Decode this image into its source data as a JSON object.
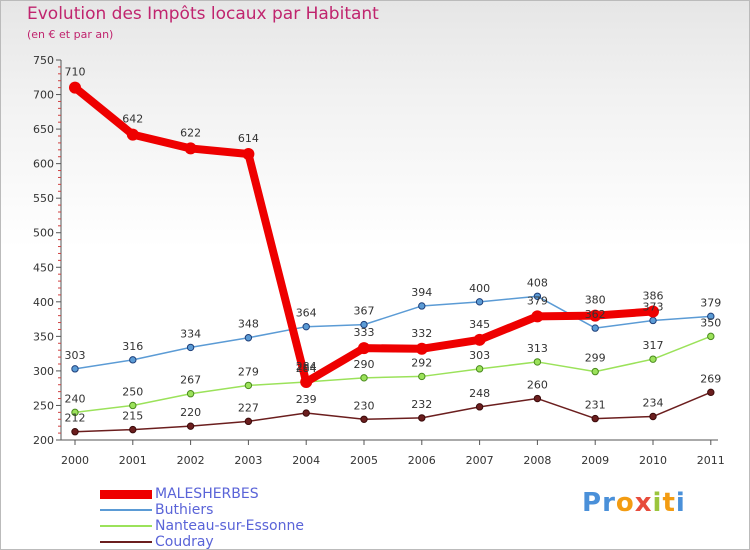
{
  "chart_data": {
    "type": "line",
    "title": "Evolution des Impôts locaux par Habitant",
    "subtitle": "(en € et par an)",
    "xlabel": "",
    "ylabel": "",
    "categories": [
      "2000",
      "2001",
      "2002",
      "2003",
      "2004",
      "2005",
      "2006",
      "2007",
      "2008",
      "2009",
      "2010",
      "2011"
    ],
    "ylim": [
      200,
      750
    ],
    "yticks": [
      200,
      250,
      300,
      350,
      400,
      450,
      500,
      550,
      600,
      650,
      700,
      750
    ],
    "grid": false,
    "legend_position": "bottom-left",
    "series": [
      {
        "name": "MALESHERBES",
        "color": "#ee0000",
        "values": [
          710,
          642,
          622,
          614,
          284,
          333,
          332,
          345,
          379,
          380,
          386,
          null
        ],
        "labels": [
          "710",
          "642",
          "622",
          "614",
          "284",
          "333",
          "332",
          "345",
          "379",
          "380",
          "386",
          ""
        ]
      },
      {
        "name": "Buthiers",
        "color": "#5b9bd5",
        "values": [
          303,
          316,
          334,
          348,
          364,
          367,
          394,
          400,
          408,
          362,
          373,
          379
        ],
        "labels": [
          "303",
          "316",
          "334",
          "348",
          "364",
          "367",
          "394",
          "400",
          "408",
          "362",
          "373",
          "379"
        ]
      },
      {
        "name": "Nanteau-sur-Essonne",
        "color": "#9be25a",
        "values": [
          240,
          250,
          267,
          279,
          284,
          290,
          292,
          303,
          313,
          299,
          317,
          350
        ],
        "labels": [
          "240",
          "250",
          "267",
          "279",
          "284",
          "290",
          "292",
          "303",
          "313",
          "299",
          "317",
          "350"
        ]
      },
      {
        "name": "Coudray",
        "color": "#6b1e1e",
        "values": [
          212,
          215,
          220,
          227,
          239,
          230,
          232,
          248,
          260,
          231,
          234,
          269
        ],
        "labels": [
          "212",
          "215",
          "220",
          "227",
          "239",
          "230",
          "232",
          "248",
          "260",
          "231",
          "234",
          "269"
        ]
      }
    ]
  },
  "logo": {
    "letters": [
      "P",
      "r",
      "o",
      "x",
      "i",
      "t",
      "i"
    ],
    "colors": [
      "#4a90d9",
      "#4a90d9",
      "#f39c12",
      "#e74c3c",
      "#9bc53d",
      "#f39c12",
      "#4a90d9"
    ]
  }
}
